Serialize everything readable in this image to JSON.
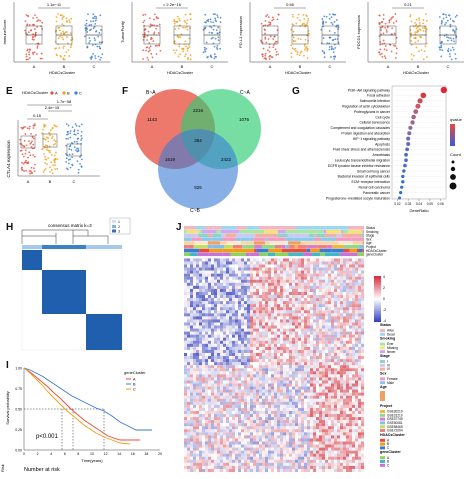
{
  "panel_labels": {
    "E": "E",
    "F": "F",
    "G": "G",
    "H": "H",
    "I": "I",
    "J": "J"
  },
  "colors": {
    "A": "#e74c3c",
    "B": "#f39c12",
    "C": "#3a7bd5"
  },
  "top_row": {
    "ylabels": [
      "ImmuneScore",
      "TumorPurity",
      "PD-L1 expression",
      "PDCD1 expression"
    ],
    "xlabel": "HDACsCluster",
    "categories": [
      "A",
      "B",
      "C"
    ],
    "pvalues": [
      "1.1e−11",
      "< 2.2e−16",
      "0.56",
      "0.21"
    ]
  },
  "panel_e": {
    "legend_title": "HDACsCluster",
    "legend_items": [
      "A",
      "B",
      "C"
    ],
    "ylabel": "CTLA4 expression",
    "xlabels": [
      "A",
      "B",
      "C"
    ],
    "comparisons": [
      "0.18",
      "2.4e−15",
      "1.7e−08"
    ]
  },
  "panel_f": {
    "set_labels": [
      "B~A",
      "C~A",
      "C~B"
    ],
    "counts": [
      "1143",
      "2216",
      "1076",
      "364",
      "1619",
      "2422",
      "825"
    ]
  },
  "panel_g": {
    "terms": [
      "PI3K−Akt signaling pathway",
      "Focal adhesion",
      "Salmonella infection",
      "Regulation of actin cytoskeleton",
      "Proteoglycans in cancer",
      "Cell cycle",
      "Cellular senescence",
      "Complement and coagulation cascades",
      "Protein digestion and absorption",
      "HIF−1 signaling pathway",
      "Apoptosis",
      "Fluid shear stress and atherosclerosis",
      "Amoebiasis",
      "Leukocyte transendothelial migration",
      "EGFR tyrosine kinase inhibitor resistance",
      "Small cell lung cancer",
      "Bacterial invasion of epithelial cells",
      "ECM−receptor interaction",
      "Renal cell carcinoma",
      "Pancreatic cancer",
      "Progesterone−mediated oocyte maturation"
    ],
    "xlabel": "GeneRatio",
    "xticks": [
      "0.02",
      "0.03",
      "0.04",
      "0.05",
      "0.06"
    ],
    "legend_p_title": "qvalue",
    "legend_count_title": "Count"
  },
  "panel_h": {
    "title": "consensus matrix k=3",
    "legend": [
      "1",
      "2",
      "3"
    ]
  },
  "panel_i": {
    "ylabel": "Survival probability",
    "xlabel": "Time(years)",
    "xticks": [
      "0",
      "2",
      "4",
      "6",
      "8",
      "10",
      "12",
      "14",
      "16",
      "18",
      "20"
    ],
    "yticks": [
      "0.00",
      "0.25",
      "0.50",
      "0.75",
      "1.00"
    ],
    "pvalue": "p<0.001",
    "legend_title": "geneCluster",
    "legend_items": [
      "A",
      "B",
      "C"
    ],
    "risk_title": "Number at risk",
    "risk_label": "Risk"
  },
  "panel_j": {
    "ann_labels": [
      "Status",
      "Smoking",
      "Stage",
      "Sex",
      "Age",
      "Project",
      "HDACsCluster",
      "geneCluster"
    ],
    "legend_groups": [
      {
        "title": "Status",
        "items": [
          "Alive",
          "Dead"
        ]
      },
      {
        "title": "Smoking",
        "items": [
          "Ever",
          "Missing",
          "Never"
        ]
      },
      {
        "title": "Stage",
        "items": [
          "I",
          "III",
          "IV"
        ]
      },
      {
        "title": "Sex",
        "items": [
          "Female",
          "Male"
        ]
      },
      {
        "title": "Age",
        "items": []
      },
      {
        "title": "Project",
        "items": [
          "GSE30219",
          "GSE31210",
          "GSE37745",
          "GSE50081",
          "GSE68465",
          "GSE72094"
        ]
      },
      {
        "title": "HDACsCluster",
        "items": [
          "A",
          "B",
          "C"
        ]
      },
      {
        "title": "geneCluster",
        "items": [
          "A",
          "B",
          "C"
        ]
      }
    ],
    "scale_ticks": [
      "4",
      "2",
      "0",
      "-2",
      "-4"
    ]
  }
}
